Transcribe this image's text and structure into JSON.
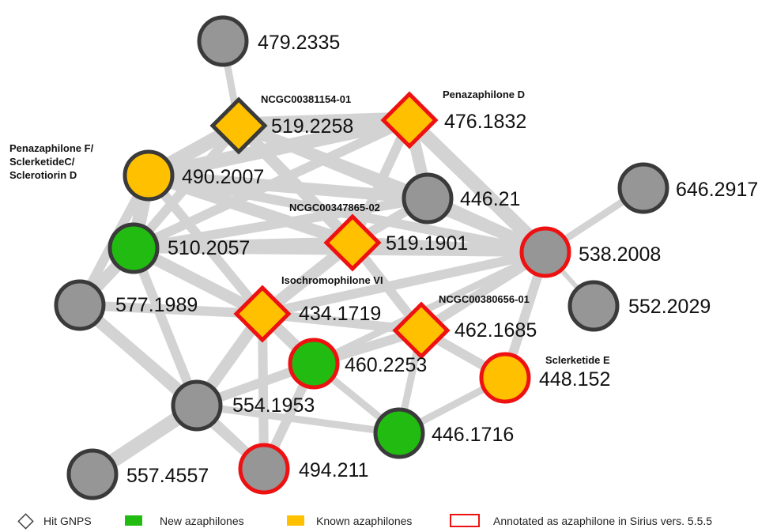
{
  "colors": {
    "grey_fill": "#969696",
    "green_fill": "#22bb11",
    "yellow_fill": "#ffc000",
    "dark_border": "#3a3a3a",
    "red_border": "#ee1111",
    "edge": "#d3d3d3"
  },
  "nodes": [
    {
      "id": "n479",
      "label": "479.2335",
      "shape": "circle",
      "fill": "grey",
      "border": "dark"
    },
    {
      "id": "n519_2258",
      "label": "519.2258",
      "shape": "diamond",
      "fill": "yellow",
      "border": "dark",
      "name": "NCGC00381154-01"
    },
    {
      "id": "n476",
      "label": "476.1832",
      "shape": "diamond",
      "fill": "yellow",
      "border": "red",
      "name": "Penazaphilone D"
    },
    {
      "id": "n490",
      "label": "490.2007",
      "shape": "circle",
      "fill": "yellow",
      "border": "dark",
      "name": "Penazaphilone F/\nSclerketideC/\nSclerotiorin D"
    },
    {
      "id": "n446_21",
      "label": "446.21",
      "shape": "circle",
      "fill": "grey",
      "border": "dark"
    },
    {
      "id": "n646",
      "label": "646.2917",
      "shape": "circle",
      "fill": "grey",
      "border": "dark"
    },
    {
      "id": "n510",
      "label": "510.2057",
      "shape": "circle",
      "fill": "green",
      "border": "dark"
    },
    {
      "id": "n519_1901",
      "label": "519.1901",
      "shape": "diamond",
      "fill": "yellow",
      "border": "red",
      "name": "NCGC00347865-02"
    },
    {
      "id": "n538",
      "label": "538.2008",
      "shape": "circle",
      "fill": "grey",
      "border": "red"
    },
    {
      "id": "n577",
      "label": "577.1989",
      "shape": "circle",
      "fill": "grey",
      "border": "dark"
    },
    {
      "id": "n434",
      "label": "434.1719",
      "shape": "diamond",
      "fill": "yellow",
      "border": "red",
      "name": "Isochromophilone VI"
    },
    {
      "id": "n552",
      "label": "552.2029",
      "shape": "circle",
      "fill": "grey",
      "border": "dark"
    },
    {
      "id": "n462",
      "label": "462.1685",
      "shape": "diamond",
      "fill": "yellow",
      "border": "red",
      "name": "NCGC00380656-01"
    },
    {
      "id": "n460",
      "label": "460.2253",
      "shape": "circle",
      "fill": "green",
      "border": "red"
    },
    {
      "id": "n448",
      "label": "448.152",
      "shape": "circle",
      "fill": "yellow",
      "border": "red",
      "name": "Sclerketide E"
    },
    {
      "id": "n554",
      "label": "554.1953",
      "shape": "circle",
      "fill": "grey",
      "border": "dark"
    },
    {
      "id": "n446_17",
      "label": "446.1716",
      "shape": "circle",
      "fill": "green",
      "border": "dark"
    },
    {
      "id": "n557",
      "label": "557.4557",
      "shape": "circle",
      "fill": "grey",
      "border": "dark"
    },
    {
      "id": "n494",
      "label": "494.211",
      "shape": "circle",
      "fill": "grey",
      "border": "red"
    }
  ],
  "edges": [
    {
      "source": "n479",
      "target": "n519_2258",
      "weight": 2
    },
    {
      "source": "n519_2258",
      "target": "n476",
      "weight": 6
    },
    {
      "source": "n519_2258",
      "target": "n490",
      "weight": 5
    },
    {
      "source": "n519_2258",
      "target": "n446_21",
      "weight": 4
    },
    {
      "source": "n519_2258",
      "target": "n519_1901",
      "weight": 4
    },
    {
      "source": "n519_2258",
      "target": "n510",
      "weight": 3
    },
    {
      "source": "n519_2258",
      "target": "n538",
      "weight": 3
    },
    {
      "source": "n476",
      "target": "n490",
      "weight": 5
    },
    {
      "source": "n476",
      "target": "n446_21",
      "weight": 4
    },
    {
      "source": "n476",
      "target": "n538",
      "weight": 5
    },
    {
      "source": "n476",
      "target": "n510",
      "weight": 3
    },
    {
      "source": "n476",
      "target": "n519_1901",
      "weight": 3
    },
    {
      "source": "n490",
      "target": "n446_21",
      "weight": 4
    },
    {
      "source": "n490",
      "target": "n510",
      "weight": 5
    },
    {
      "source": "n490",
      "target": "n519_1901",
      "weight": 4
    },
    {
      "source": "n490",
      "target": "n538",
      "weight": 3
    },
    {
      "source": "n490",
      "target": "n434",
      "weight": 3
    },
    {
      "source": "n490",
      "target": "n577",
      "weight": 3
    },
    {
      "source": "n446_21",
      "target": "n538",
      "weight": 4
    },
    {
      "source": "n446_21",
      "target": "n510",
      "weight": 3
    },
    {
      "source": "n446_21",
      "target": "n519_1901",
      "weight": 3
    },
    {
      "source": "n646",
      "target": "n538",
      "weight": 2
    },
    {
      "source": "n510",
      "target": "n519_1901",
      "weight": 4
    },
    {
      "source": "n510",
      "target": "n577",
      "weight": 4
    },
    {
      "source": "n510",
      "target": "n434",
      "weight": 4
    },
    {
      "source": "n510",
      "target": "n538",
      "weight": 3
    },
    {
      "source": "n510",
      "target": "n554",
      "weight": 3
    },
    {
      "source": "n519_1901",
      "target": "n538",
      "weight": 4
    },
    {
      "source": "n519_1901",
      "target": "n434",
      "weight": 4
    },
    {
      "source": "n519_1901",
      "target": "n462",
      "weight": 3
    },
    {
      "source": "n538",
      "target": "n552",
      "weight": 1
    },
    {
      "source": "n538",
      "target": "n462",
      "weight": 3
    },
    {
      "source": "n538",
      "target": "n448",
      "weight": 3
    },
    {
      "source": "n538",
      "target": "n434",
      "weight": 3
    },
    {
      "source": "n538",
      "target": "n460",
      "weight": 2
    },
    {
      "source": "n577",
      "target": "n434",
      "weight": 3
    },
    {
      "source": "n577",
      "target": "n554",
      "weight": 4
    },
    {
      "source": "n577",
      "target": "n494",
      "weight": 3
    },
    {
      "source": "n434",
      "target": "n462",
      "weight": 3
    },
    {
      "source": "n434",
      "target": "n460",
      "weight": 4
    },
    {
      "source": "n434",
      "target": "n554",
      "weight": 4
    },
    {
      "source": "n434",
      "target": "n494",
      "weight": 3
    },
    {
      "source": "n462",
      "target": "n460",
      "weight": 3
    },
    {
      "source": "n462",
      "target": "n448",
      "weight": 3
    },
    {
      "source": "n462",
      "target": "n446_17",
      "weight": 2
    },
    {
      "source": "n460",
      "target": "n554",
      "weight": 3
    },
    {
      "source": "n460",
      "target": "n494",
      "weight": 3
    },
    {
      "source": "n460",
      "target": "n446_17",
      "weight": 2
    },
    {
      "source": "n448",
      "target": "n446_17",
      "weight": 2
    },
    {
      "source": "n554",
      "target": "n557",
      "weight": 5
    },
    {
      "source": "n554",
      "target": "n494",
      "weight": 3
    },
    {
      "source": "n554",
      "target": "n446_17",
      "weight": 2
    }
  ],
  "legend": [
    {
      "symbol": "diamond",
      "label": "Hit GNPS"
    },
    {
      "symbol": "green-square",
      "label": "New azaphilones"
    },
    {
      "symbol": "yellow-square",
      "label": "Known azaphilones"
    },
    {
      "symbol": "red-outline",
      "label": "Annotated as azaphilone in Sirius vers. 5.5.5"
    }
  ]
}
